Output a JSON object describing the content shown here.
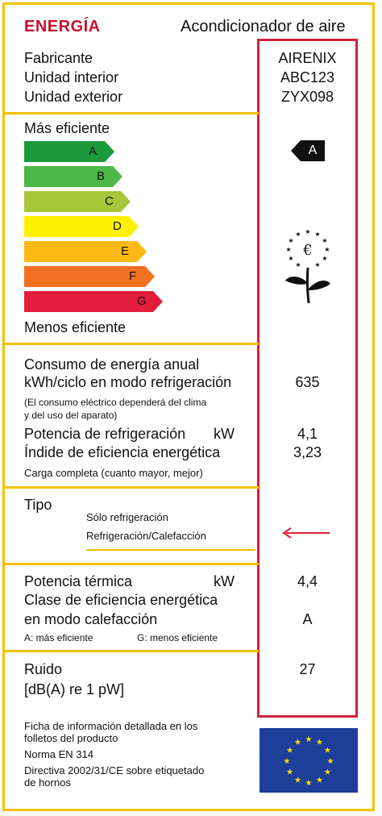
{
  "header": {
    "title": "ENERGÍA",
    "appliance": "Acondicionador de aire"
  },
  "identity": {
    "labels": [
      "Fabricante",
      "Unidad interior",
      "Unidad exterior"
    ],
    "values": [
      "AIRENIX",
      "ABC123",
      "ZYX098"
    ]
  },
  "efficiency": {
    "top_label": "Más eficiente",
    "bottom_label": "Menos eficiente",
    "classes": [
      "A",
      "B",
      "C",
      "D",
      "E",
      "F",
      "G"
    ],
    "colors": [
      "#1a9a3a",
      "#4cb848",
      "#a6c739",
      "#fff200",
      "#fdb913",
      "#f37021",
      "#e31d3c"
    ],
    "rating": "A"
  },
  "consumption": {
    "line1": "Consumo de energía anual",
    "line2": "kWh/ciclo en modo refrigeración",
    "value": "635",
    "note1": "(El consumo eléctrico dependerá del clima",
    "note2": "y del uso del aparato)",
    "power_label": "Potencia de refrigeración",
    "power_unit": "kW",
    "power_value": "4,1",
    "eer_label": "Índide de eficiencia energética",
    "eer_value": "3,23",
    "eer_note": "Carga completa (cuanto mayor, mejor)"
  },
  "type": {
    "label": "Tipo",
    "option1": "Sólo refrigeración",
    "option2": "Refrigeración/Calefacción"
  },
  "heating": {
    "power_label": "Potencia térmica",
    "power_unit": "kW",
    "power_value": "4,4",
    "class_line1": "Clase de eficiencia energética",
    "class_line2": "en modo calefacción",
    "class_value": "A",
    "note_a": "A: más eficiente",
    "note_g": "G: menos eficiente"
  },
  "noise": {
    "label1": "Ruido",
    "label2": "[dB(A) re 1 pW]",
    "value": "27"
  },
  "footer": {
    "line1": "Ficha de información detallada en los",
    "line2": "folletos del producto",
    "line3": "Norma EN 314",
    "line4": "Directiva 2002/31/CE sobre etiquetado",
    "line5": "de hornos"
  }
}
